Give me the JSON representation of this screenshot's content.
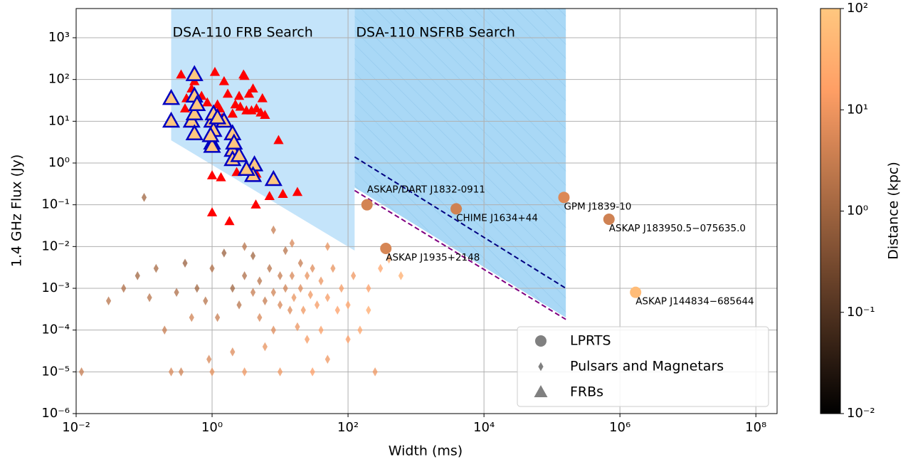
{
  "chart_data": {
    "type": "scatter",
    "xlabel": "Width (ms)",
    "ylabel": "1.4 GHz Flux (Jy)",
    "xscale": "log",
    "yscale": "log",
    "grid": true,
    "xlim": [
      0.01,
      205000000
    ],
    "ylim": [
      1e-06,
      5000
    ],
    "xticks": [
      {
        "value": 0.01,
        "label": "10⁻²"
      },
      {
        "value": 1,
        "label": "10⁰"
      },
      {
        "value": 100,
        "label": "10²"
      },
      {
        "value": 10000,
        "label": "10⁴"
      },
      {
        "value": 1000000,
        "label": "10⁶"
      },
      {
        "value": 100000000,
        "label": "10⁸"
      }
    ],
    "yticks": [
      {
        "value": 1e-06,
        "label": "10⁻⁶"
      },
      {
        "value": 1e-05,
        "label": "10⁻⁵"
      },
      {
        "value": 0.0001,
        "label": "10⁻⁴"
      },
      {
        "value": 0.001,
        "label": "10⁻³"
      },
      {
        "value": 0.01,
        "label": "10⁻²"
      },
      {
        "value": 0.1,
        "label": "10⁻¹"
      },
      {
        "value": 1,
        "label": "10⁰"
      },
      {
        "value": 10,
        "label": "10¹"
      },
      {
        "value": 100,
        "label": "10²"
      },
      {
        "value": 1000,
        "label": "10³"
      }
    ],
    "regions": [
      {
        "label": "DSA-110 FRB Search",
        "color": "#c4e4fa",
        "hatch": false,
        "x": [
          0.25,
          125,
          125,
          0.25
        ],
        "y": [
          5000,
          5000,
          0.008,
          3.5
        ]
      },
      {
        "label": "DSA-110 NSFRB Search",
        "color": "#a9d8f6",
        "hatch": true,
        "x": [
          125,
          160000,
          160000,
          125
        ],
        "y": [
          5000,
          5000,
          0.0002,
          0.26
        ]
      }
    ],
    "lines": [
      {
        "color": "#000080",
        "x": [
          125,
          160000
        ],
        "y": [
          1.4,
          0.001
        ]
      },
      {
        "color": "#800080",
        "x": [
          125,
          160000
        ],
        "y": [
          0.22,
          0.00018
        ]
      }
    ],
    "colorbar": {
      "label": "Distance (kpc)",
      "colormap": "copper",
      "lim": [
        0.01,
        100
      ],
      "ticks": [
        {
          "value": 0.01,
          "label": "10⁻²"
        },
        {
          "value": 0.1,
          "label": "10⁻¹"
        },
        {
          "value": 1,
          "label": "10⁰"
        },
        {
          "value": 10,
          "label": "10¹"
        },
        {
          "value": 100,
          "label": "10²"
        }
      ]
    },
    "legend": "lower right",
    "legend_color": "#808080",
    "series": [
      {
        "name": "LPRTS",
        "marker": "circle",
        "labels": [
          "ASKAP/DART J1832-0911",
          "ASKAP J1935+2148",
          "CHIME J1634+44",
          "GPM J1839-10",
          "ASKAP J183950.5−075635.0",
          "ASKAP J144834−685644"
        ],
        "x": [
          190,
          360,
          3900,
          150000,
          690000,
          1700000
        ],
        "values": [
          0.1,
          0.009,
          0.08,
          0.15,
          0.045,
          0.0008
        ],
        "distance": [
          4.5,
          4.9,
          4,
          5.7,
          4,
          60
        ]
      },
      {
        "name": "Pulsars and Magnetars",
        "marker": "diamond",
        "x": [
          0.012,
          0.03,
          0.05,
          0.08,
          0.1,
          0.12,
          0.15,
          0.2,
          0.25,
          0.3,
          0.4,
          0.5,
          0.6,
          0.8,
          1,
          1,
          1.2,
          1.5,
          2,
          2,
          2.5,
          3,
          3,
          4,
          4,
          5,
          5,
          6,
          6,
          7,
          8,
          8,
          10,
          10,
          10,
          12,
          12,
          14,
          15,
          16,
          18,
          20,
          20,
          22,
          25,
          25,
          28,
          30,
          30,
          35,
          40,
          40,
          50,
          50,
          60,
          70,
          80,
          100,
          100,
          120,
          150,
          200,
          200,
          250,
          300,
          400,
          600,
          8,
          3,
          15,
          50,
          0.9,
          0.35
        ],
        "values": [
          1e-05,
          0.0005,
          0.001,
          0.002,
          0.15,
          0.0006,
          0.003,
          0.0001,
          1e-05,
          0.0008,
          0.004,
          0.0002,
          0.001,
          0.0005,
          1e-05,
          0.003,
          0.0002,
          0.007,
          0.001,
          3e-05,
          0.0004,
          0.002,
          1e-05,
          0.0008,
          0.006,
          0.0002,
          0.0015,
          4e-05,
          0.0005,
          0.003,
          0.0001,
          0.0008,
          0.002,
          0.0004,
          1e-05,
          0.001,
          0.008,
          0.0003,
          0.002,
          0.0006,
          0.00012,
          0.004,
          0.001,
          0.0003,
          0.002,
          6e-05,
          0.0007,
          1e-05,
          0.003,
          0.0004,
          0.0015,
          0.0001,
          0.0006,
          2e-05,
          0.003,
          0.0003,
          0.001,
          6e-05,
          0.0004,
          0.002,
          0.0001,
          0.001,
          0.0003,
          1e-05,
          0.003,
          0.005,
          0.002,
          0.025,
          0.01,
          0.012,
          0.01,
          2e-05,
          1e-05
        ],
        "distance": [
          3,
          2,
          1.5,
          1,
          1,
          2,
          1.2,
          3,
          5,
          1.5,
          0.8,
          4,
          1,
          2,
          8,
          1.5,
          3,
          0.8,
          1,
          6,
          2,
          1.5,
          10,
          3,
          1,
          5,
          2,
          8,
          3,
          2,
          6,
          4,
          3,
          5,
          10,
          4,
          2,
          6,
          5,
          8,
          9,
          3,
          6,
          10,
          8,
          12,
          10,
          15,
          6,
          12,
          9,
          14,
          12,
          10,
          8,
          15,
          12,
          15,
          18,
          10,
          20,
          15,
          25,
          10,
          20,
          25,
          30,
          3,
          2,
          5,
          8,
          5,
          4
        ]
      },
      {
        "name": "FRBs",
        "marker": "triangle",
        "color": "#ff0000",
        "edgecolor": "#0000c0",
        "x": [
          0.35,
          0.55,
          1.1,
          1.5,
          2.9,
          3.5,
          1.7,
          2.2,
          2.6,
          3.2,
          4.5,
          5.5,
          1.3,
          0.5,
          0.42,
          1.4,
          2.0,
          3.8,
          5.2,
          9.5,
          1.1,
          1.0,
          1.35,
          2.3,
          3.6,
          4.4,
          7.0,
          11,
          18,
          1.8,
          1.0,
          4.5,
          0.7,
          0.85,
          3,
          4,
          2.5,
          6,
          0.4,
          1.2,
          0.25,
          0.55,
          0.55,
          0.25,
          0.5,
          0.55,
          0.55,
          1.0,
          1.0,
          1.0,
          1.05,
          1.5,
          2.0,
          2.0,
          2.0,
          1.05,
          4.2,
          4.0,
          8.0,
          2.5,
          1.2,
          0.6,
          3.2,
          2.1,
          0.95
        ],
        "values": [
          130,
          90,
          150,
          90,
          130,
          45,
          45,
          25,
          22,
          18,
          20,
          35,
          20,
          60,
          35,
          12,
          15,
          18,
          16,
          3.5,
          9,
          0.5,
          0.45,
          0.6,
          0.65,
          0.1,
          0.16,
          0.18,
          0.2,
          0.04,
          0.065,
          0.55,
          40,
          28,
          120,
          60,
          40,
          14,
          20,
          25,
          35,
          130,
          40,
          10,
          10,
          5,
          15,
          10,
          3,
          2.5,
          15,
          10,
          5,
          2,
          1.2,
          6,
          0.9,
          0.5,
          0.4,
          1.5,
          12,
          25,
          0.7,
          3,
          4.5
        ],
        "distance": [
          null,
          null,
          null,
          null,
          null,
          null,
          null,
          null,
          null,
          null,
          null,
          null,
          null,
          null,
          null,
          null,
          null,
          null,
          null,
          null,
          null,
          null,
          null,
          null,
          null,
          null,
          null,
          null,
          null,
          null,
          null,
          null,
          null,
          null,
          null,
          null,
          null,
          null,
          null,
          null,
          100,
          100,
          100,
          100,
          100,
          100,
          100,
          100,
          100,
          100,
          100,
          100,
          100,
          100,
          100,
          100,
          100,
          100,
          100,
          100,
          100,
          100,
          100,
          100,
          100
        ]
      }
    ]
  }
}
